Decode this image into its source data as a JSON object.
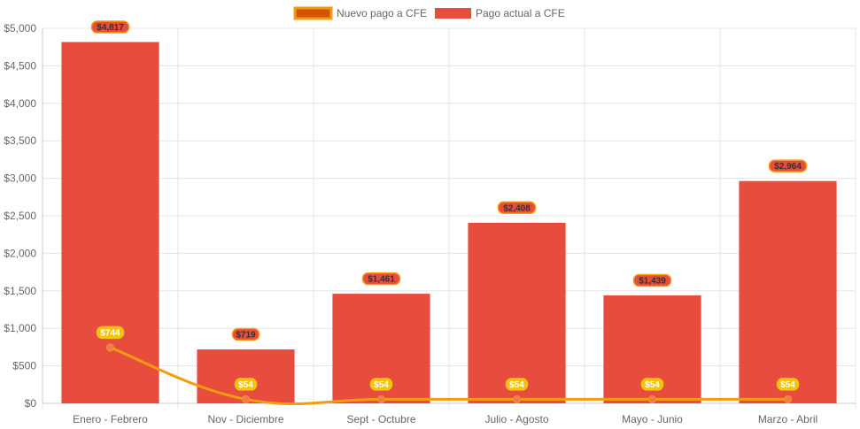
{
  "chart_data": {
    "type": "bar",
    "categories": [
      "Enero - Febrero",
      "Nov - Diciembre",
      "Sept - Octubre",
      "Julio - Agosto",
      "Mayo - Junio",
      "Marzo - Abril"
    ],
    "series": [
      {
        "name": "Nuevo pago a CFE",
        "type": "line",
        "values": [
          744,
          54,
          54,
          54,
          54,
          54
        ],
        "labels": [
          "$744",
          "$54",
          "$54",
          "$54",
          "$54",
          "$54"
        ],
        "color": "#f39c12",
        "legend_fill": "#d35400",
        "label_bg": "#f1c40f",
        "label_text_color": "#ffffff"
      },
      {
        "name": "Pago actual a CFE",
        "type": "bar",
        "values": [
          4817,
          719,
          1461,
          2408,
          1439,
          2964
        ],
        "labels": [
          "$4,817",
          "$719",
          "$1,461",
          "$2,408",
          "$1,439",
          "$2,964"
        ],
        "color": "#e74c3c",
        "label_bg": "#e74c3c",
        "label_border": "#f39c12",
        "label_text_color": "#333333"
      }
    ],
    "ylim": [
      0,
      5000
    ],
    "yticks": [
      0,
      500,
      1000,
      1500,
      2000,
      2500,
      3000,
      3500,
      4000,
      4500,
      5000
    ],
    "ytick_labels": [
      "$0",
      "$500",
      "$1,000",
      "$1,500",
      "$2,000",
      "$2,500",
      "$3,000",
      "$3,500",
      "$4,000",
      "$4,500",
      "$5,000"
    ],
    "legend_position": "top",
    "grid": true,
    "colors": {
      "grid": "#e5e5e5",
      "axis": "#cccccc",
      "tick_text": "#666666"
    }
  }
}
